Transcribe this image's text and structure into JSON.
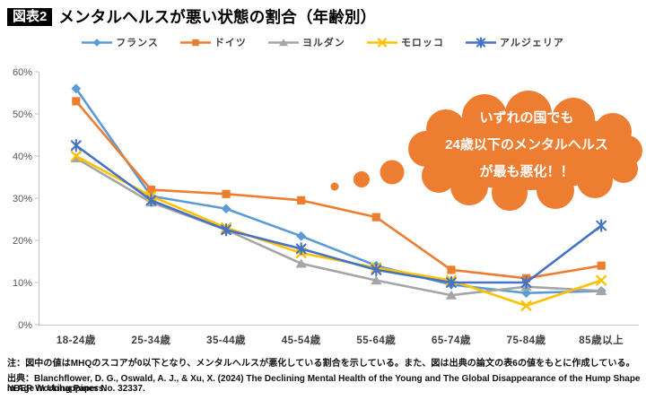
{
  "header": {
    "tag": "図表2",
    "title": "メンタルヘルスが悪い状態の割合（年齢別）"
  },
  "chart_data": {
    "type": "line",
    "title": "メンタルヘルスが悪い状態の割合（年齢別）",
    "categories": [
      "18-24歳",
      "25-34歳",
      "35-44歳",
      "45-54歳",
      "55-64歳",
      "65-74歳",
      "75-84歳",
      "85歳以上"
    ],
    "series": [
      {
        "key": "france",
        "name": "フランス",
        "color": "#5B9BD5",
        "marker": "diamond",
        "values": [
          56,
          30.5,
          27.5,
          21,
          14,
          9.5,
          7.5,
          8
        ]
      },
      {
        "key": "germany",
        "name": "ドイツ",
        "color": "#ED7D31",
        "marker": "square",
        "values": [
          53,
          32,
          31,
          29.5,
          25.5,
          13,
          11,
          14
        ]
      },
      {
        "key": "jordan",
        "name": "ヨルダン",
        "color": "#A5A5A5",
        "marker": "triangle",
        "values": [
          39.5,
          29,
          22.5,
          14.5,
          10.5,
          7,
          9,
          8
        ]
      },
      {
        "key": "morocco",
        "name": "モロッコ",
        "color": "#FFC000",
        "marker": "x",
        "values": [
          40,
          30.5,
          23,
          17,
          13.5,
          10.5,
          4.5,
          10.5
        ]
      },
      {
        "key": "algeria",
        "name": "アルジェリア",
        "color": "#4472C4",
        "marker": "asterisk",
        "values": [
          42.5,
          29.5,
          22.5,
          18,
          13,
          10,
          10,
          23.5
        ]
      }
    ],
    "ylim": [
      0,
      60
    ],
    "yticks": [
      "0%",
      "10%",
      "20%",
      "30%",
      "40%",
      "50%",
      "60%"
    ],
    "xlabel": "",
    "ylabel": "",
    "legend_position": "top",
    "grid": false
  },
  "annotation": {
    "lines": [
      "いずれの国でも",
      "24歳以下のメンタルヘルス",
      "が最も悪化！！"
    ],
    "color": "#ED7D31"
  },
  "footer": {
    "note": "注：図中の値はMHQのスコアが0以下となり、メンタルヘルスが悪化している割合を示している。また、図は出典の論文の表6の値をもとに作成している。",
    "source": "出典：Blanchflower, D. G., Oswald, A. J., & Xu, X. (2024) The Declining Mental Health of the Young and The Global Disappearance of the Hump Shape in Age in Unhappiness.",
    "source2": "NBER Working Paper No. 32337."
  }
}
